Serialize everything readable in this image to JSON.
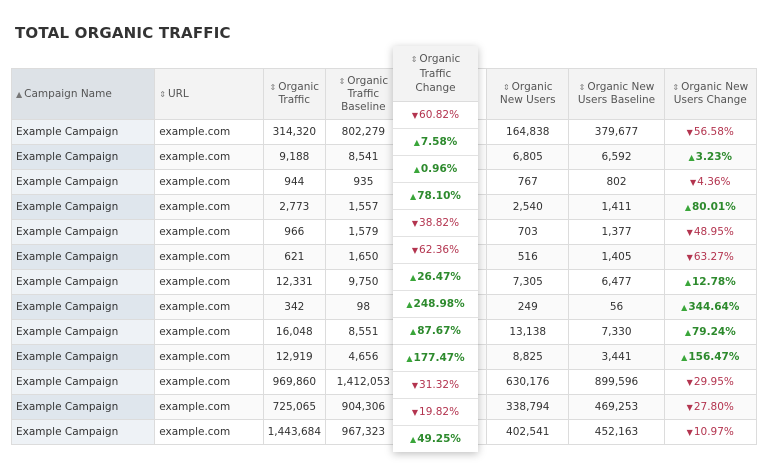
{
  "title": "TOTAL ORGANIC TRAFFIC",
  "colors": {
    "up": "#2d8a2d",
    "down": "#b3344f"
  },
  "headers": [
    "Campaign Name",
    "URL",
    "Organic Traffic",
    "Organic Traffic Baseline",
    "Organic Traffic Change",
    "Organic New Users",
    "Organic New Users Baseline",
    "Organic New Users Change"
  ],
  "rows": [
    [
      "Example Campaign",
      "example.com",
      "314,320",
      "802,279",
      "60.82%",
      "164,838",
      "379,677",
      "56.58%"
    ],
    [
      "Example Campaign",
      "example.com",
      "9,188",
      "8,541",
      "7.58%",
      "6,805",
      "6,592",
      "3.23%"
    ],
    [
      "Example Campaign",
      "example.com",
      "944",
      "935",
      "0.96%",
      "767",
      "802",
      "4.36%"
    ],
    [
      "Example Campaign",
      "example.com",
      "2,773",
      "1,557",
      "78.10%",
      "2,540",
      "1,411",
      "80.01%"
    ],
    [
      "Example Campaign",
      "example.com",
      "966",
      "1,579",
      "38.82%",
      "703",
      "1,377",
      "48.95%"
    ],
    [
      "Example Campaign",
      "example.com",
      "621",
      "1,650",
      "62.36%",
      "516",
      "1,405",
      "63.27%"
    ],
    [
      "Example Campaign",
      "example.com",
      "12,331",
      "9,750",
      "26.47%",
      "7,305",
      "6,477",
      "12.78%"
    ],
    [
      "Example Campaign",
      "example.com",
      "342",
      "98",
      "248.98%",
      "249",
      "56",
      "344.64%"
    ],
    [
      "Example Campaign",
      "example.com",
      "16,048",
      "8,551",
      "87.67%",
      "13,138",
      "7,330",
      "79.24%"
    ],
    [
      "Example Campaign",
      "example.com",
      "12,919",
      "4,656",
      "177.47%",
      "8,825",
      "3,441",
      "156.47%"
    ],
    [
      "Example Campaign",
      "example.com",
      "969,860",
      "1,412,053",
      "31.32%",
      "630,176",
      "899,596",
      "29.95%"
    ],
    [
      "Example Campaign",
      "example.com",
      "725,065",
      "904,306",
      "19.82%",
      "338,794",
      "469,253",
      "27.80%"
    ],
    [
      "Example Campaign",
      "example.com",
      "1,443,684",
      "967,323",
      "49.25%",
      "402,541",
      "452,163",
      "10.97%"
    ]
  ],
  "traffic_change_dir": [
    "down",
    "up",
    "up",
    "up",
    "down",
    "down",
    "up",
    "up",
    "up",
    "up",
    "down",
    "down",
    "up"
  ],
  "users_change_dir": [
    "down",
    "up",
    "down",
    "up",
    "down",
    "down",
    "up",
    "up",
    "up",
    "up",
    "down",
    "down",
    "down"
  ]
}
